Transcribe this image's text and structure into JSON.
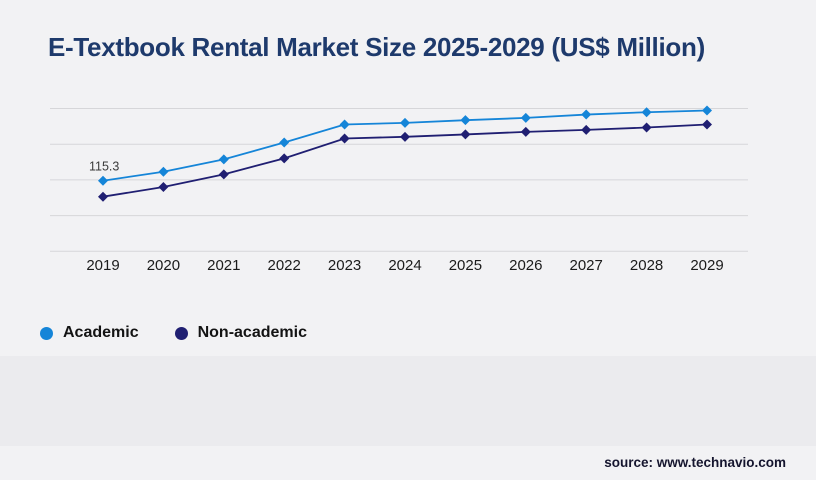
{
  "title": "E-Textbook Rental Market Size 2025-2029 (US$ Million)",
  "source": "source: www.technavio.com",
  "legend": {
    "items": [
      {
        "label": "Academic",
        "color": "#1585d8"
      },
      {
        "label": "Non-academic",
        "color": "#201f72"
      }
    ]
  },
  "colors": {
    "academic": "#1585d8",
    "non_academic": "#201f72",
    "title_text": "#1e3a6c",
    "gridline": "#d6d6d9",
    "axis_text": "#1b1b1b",
    "annotation_text": "#3a3a3a",
    "background": "#f2f2f4"
  },
  "chart_data": {
    "type": "line",
    "title": "E-Textbook Rental Market Size 2025-2029 (US$ Million)",
    "x": [
      "2019",
      "2020",
      "2021",
      "2022",
      "2023",
      "2024",
      "2025",
      "2026",
      "2027",
      "2028",
      "2029"
    ],
    "series": [
      {
        "name": "Academic",
        "color": "#1585d8",
        "values": [
          115.3,
          130.0,
          150.1,
          177.8,
          207.1,
          209.8,
          214.2,
          217.9,
          223.4,
          227.2,
          230.0
        ]
      },
      {
        "name": "Non-academic",
        "color": "#201f72",
        "values": [
          89.2,
          105.0,
          125.7,
          151.8,
          184.3,
          187.0,
          190.9,
          195.1,
          198.3,
          202.2,
          207.1
        ]
      }
    ],
    "annotations": [
      {
        "series": "Academic",
        "x": "2019",
        "label": "115.3"
      }
    ],
    "xlabel": "",
    "ylabel": "",
    "ylim": [
      0,
      230
    ],
    "grid": "horizontal",
    "y_axis_labels_visible": false,
    "legend_position": "bottom-left",
    "marker": "diamond"
  }
}
